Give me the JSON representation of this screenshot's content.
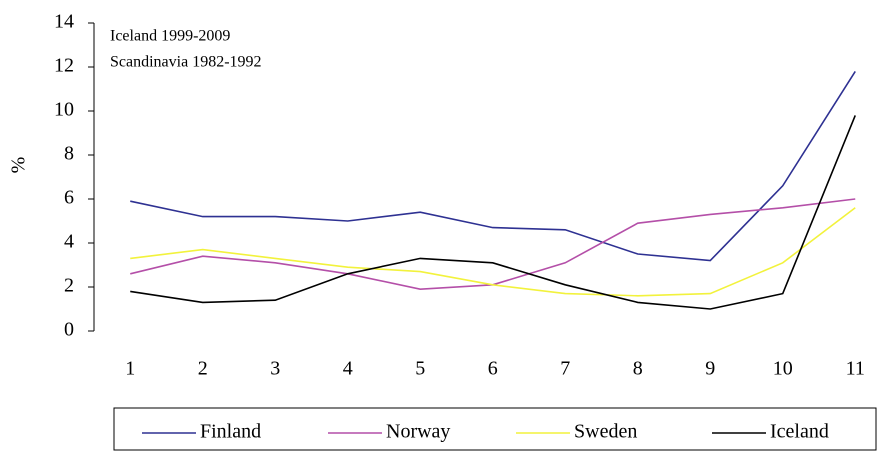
{
  "chart_data": {
    "type": "line",
    "annotations": [
      "Iceland 1999-2009",
      "Scandinavia 1982-1992"
    ],
    "y_label": "%",
    "categories": [
      "1",
      "2",
      "3",
      "4",
      "5",
      "6",
      "7",
      "8",
      "9",
      "10",
      "11"
    ],
    "series": [
      {
        "name": "Finland",
        "color": "#2e3192",
        "values": [
          5.9,
          5.2,
          5.2,
          5.0,
          5.4,
          4.7,
          4.6,
          3.5,
          3.2,
          6.6,
          11.8
        ]
      },
      {
        "name": "Norway",
        "color": "#b44fa8",
        "values": [
          2.6,
          3.4,
          3.1,
          2.6,
          1.9,
          2.1,
          3.1,
          4.9,
          5.3,
          5.6,
          6.0
        ]
      },
      {
        "name": "Sweden",
        "color": "#f2f23c",
        "values": [
          3.3,
          3.7,
          3.3,
          2.9,
          2.7,
          2.1,
          1.7,
          1.6,
          1.7,
          3.1,
          5.6
        ]
      },
      {
        "name": "Iceland",
        "color": "#000000",
        "values": [
          1.8,
          1.3,
          1.4,
          2.6,
          3.3,
          3.1,
          2.1,
          1.3,
          1.0,
          1.7,
          9.8
        ]
      }
    ],
    "ylim": [
      0,
      14
    ],
    "yticks": [
      0,
      2,
      4,
      6,
      8,
      10,
      12,
      14
    ],
    "legend": "bottom"
  }
}
